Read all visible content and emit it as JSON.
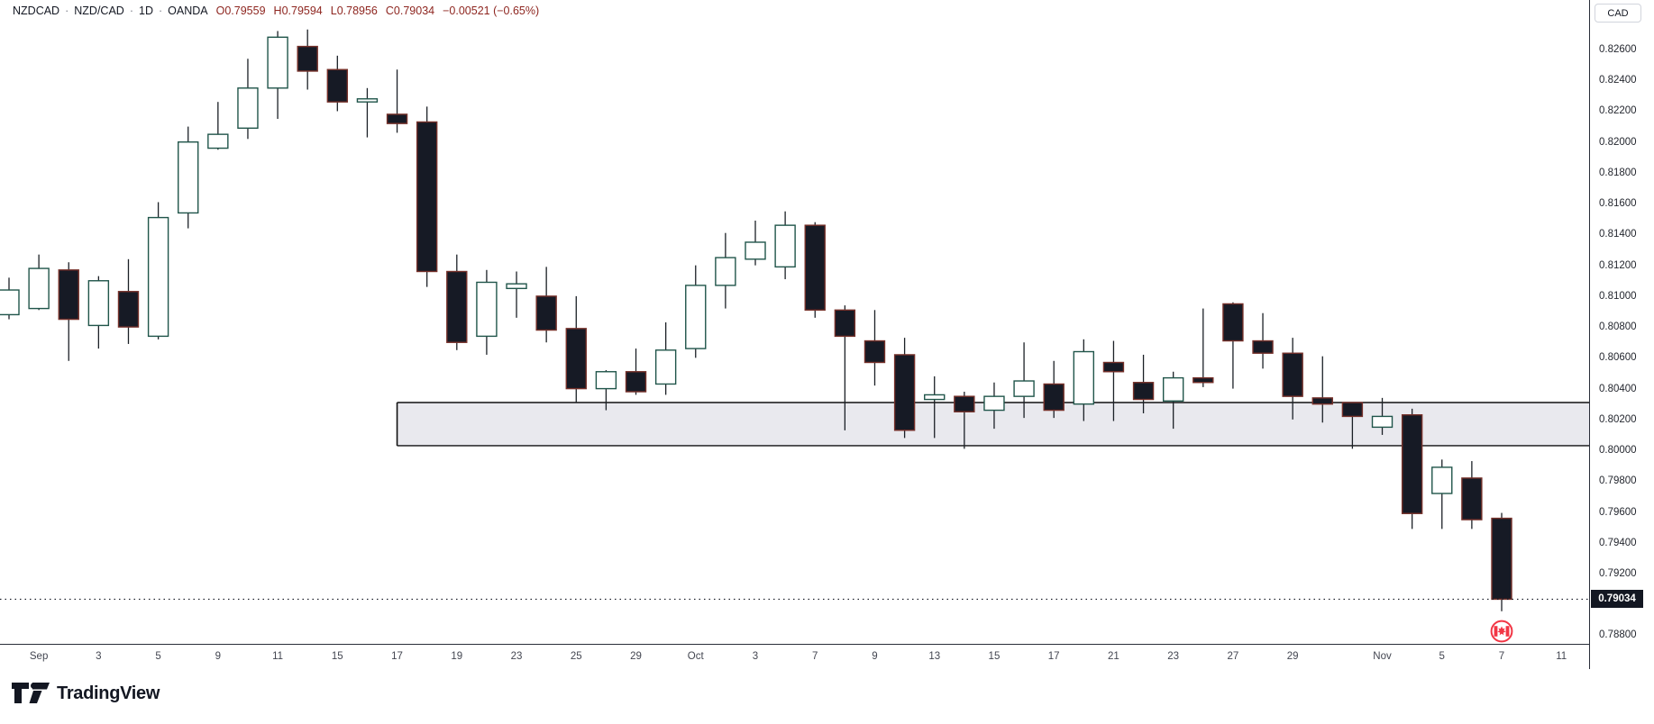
{
  "legend": {
    "symbol": "NZDCAD",
    "sep": "·",
    "pair": "NZD/CAD",
    "interval": "1D",
    "exchange": "OANDA",
    "ohlc": [
      {
        "k": "O",
        "v": "0.79559"
      },
      {
        "k": "H",
        "v": "0.79594"
      },
      {
        "k": "L",
        "v": "0.78956"
      },
      {
        "k": "C",
        "v": "0.79034"
      }
    ],
    "change": "−0.00521 (−0.65%)",
    "value_color": "#8e2620"
  },
  "price_axis": {
    "currency": "CAD",
    "last_price": "0.79034",
    "labels": [
      "0.82600",
      "0.82400",
      "0.82200",
      "0.82000",
      "0.81800",
      "0.81600",
      "0.81400",
      "0.81200",
      "0.81000",
      "0.80800",
      "0.80600",
      "0.80400",
      "0.80200",
      "0.80000",
      "0.79800",
      "0.79600",
      "0.79400",
      "0.79200",
      "0.78800"
    ]
  },
  "time_axis": {
    "ticks": [
      {
        "label": "Sep",
        "i": 1
      },
      {
        "label": "3",
        "i": 3
      },
      {
        "label": "5",
        "i": 5
      },
      {
        "label": "9",
        "i": 7
      },
      {
        "label": "11",
        "i": 9
      },
      {
        "label": "15",
        "i": 11
      },
      {
        "label": "17",
        "i": 13
      },
      {
        "label": "19",
        "i": 15
      },
      {
        "label": "23",
        "i": 17
      },
      {
        "label": "25",
        "i": 19
      },
      {
        "label": "29",
        "i": 21
      },
      {
        "label": "Oct",
        "i": 23
      },
      {
        "label": "3",
        "i": 25
      },
      {
        "label": "7",
        "i": 27
      },
      {
        "label": "9",
        "i": 29
      },
      {
        "label": "13",
        "i": 31
      },
      {
        "label": "15",
        "i": 33
      },
      {
        "label": "17",
        "i": 35
      },
      {
        "label": "21",
        "i": 37
      },
      {
        "label": "23",
        "i": 39
      },
      {
        "label": "27",
        "i": 41
      },
      {
        "label": "29",
        "i": 43
      },
      {
        "label": "Nov",
        "i": 46
      },
      {
        "label": "5",
        "i": 48
      },
      {
        "label": "7",
        "i": 50
      },
      {
        "label": "11",
        "i": 52
      }
    ]
  },
  "chart_data": {
    "type": "candlestick",
    "symbol": "NZDCAD",
    "timeframe": "1D",
    "price_axis_range": [
      0.7875,
      0.8273
    ],
    "grid": "off",
    "candles": [
      {
        "d": "Aug 29",
        "o": 0.8088,
        "h": 0.8112,
        "l": 0.8085,
        "c": 0.8104
      },
      {
        "d": "Sep 1",
        "o": 0.8092,
        "h": 0.8127,
        "l": 0.8091,
        "c": 0.8118
      },
      {
        "d": "Sep 2",
        "o": 0.8117,
        "h": 0.8122,
        "l": 0.8058,
        "c": 0.8085
      },
      {
        "d": "Sep 3",
        "o": 0.8081,
        "h": 0.8113,
        "l": 0.8066,
        "c": 0.811
      },
      {
        "d": "Sep 4",
        "o": 0.8103,
        "h": 0.8124,
        "l": 0.8069,
        "c": 0.808
      },
      {
        "d": "Sep 5",
        "o": 0.8074,
        "h": 0.8161,
        "l": 0.8072,
        "c": 0.8151
      },
      {
        "d": "Sep 8",
        "o": 0.8154,
        "h": 0.821,
        "l": 0.8144,
        "c": 0.82
      },
      {
        "d": "Sep 9",
        "o": 0.8196,
        "h": 0.8226,
        "l": 0.8195,
        "c": 0.8205
      },
      {
        "d": "Sep 10",
        "o": 0.8209,
        "h": 0.8254,
        "l": 0.8202,
        "c": 0.8235
      },
      {
        "d": "Sep 11",
        "o": 0.8235,
        "h": 0.8272,
        "l": 0.8215,
        "c": 0.8268
      },
      {
        "d": "Sep 12",
        "o": 0.8262,
        "h": 0.8273,
        "l": 0.8234,
        "c": 0.8246
      },
      {
        "d": "Sep 15",
        "o": 0.8247,
        "h": 0.8256,
        "l": 0.822,
        "c": 0.8226
      },
      {
        "d": "Sep 16",
        "o": 0.8226,
        "h": 0.8235,
        "l": 0.8203,
        "c": 0.8228
      },
      {
        "d": "Sep 17",
        "o": 0.8218,
        "h": 0.8247,
        "l": 0.8206,
        "c": 0.8212
      },
      {
        "d": "Sep 18",
        "o": 0.8213,
        "h": 0.8223,
        "l": 0.8106,
        "c": 0.8116
      },
      {
        "d": "Sep 19",
        "o": 0.8116,
        "h": 0.8127,
        "l": 0.8065,
        "c": 0.807
      },
      {
        "d": "Sep 22",
        "o": 0.8074,
        "h": 0.8117,
        "l": 0.8062,
        "c": 0.8109
      },
      {
        "d": "Sep 23",
        "o": 0.8105,
        "h": 0.8116,
        "l": 0.8086,
        "c": 0.8108
      },
      {
        "d": "Sep 24",
        "o": 0.81,
        "h": 0.8119,
        "l": 0.807,
        "c": 0.8078
      },
      {
        "d": "Sep 25",
        "o": 0.8079,
        "h": 0.81,
        "l": 0.8031,
        "c": 0.804
      },
      {
        "d": "Sep 26",
        "o": 0.804,
        "h": 0.8052,
        "l": 0.8026,
        "c": 0.8051
      },
      {
        "d": "Sep 29",
        "o": 0.8051,
        "h": 0.8066,
        "l": 0.8036,
        "c": 0.8038
      },
      {
        "d": "Sep 30",
        "o": 0.8043,
        "h": 0.8083,
        "l": 0.8036,
        "c": 0.8065
      },
      {
        "d": "Oct 1",
        "o": 0.8066,
        "h": 0.812,
        "l": 0.806,
        "c": 0.8107
      },
      {
        "d": "Oct 2",
        "o": 0.8107,
        "h": 0.8141,
        "l": 0.8092,
        "c": 0.8125
      },
      {
        "d": "Oct 3",
        "o": 0.8124,
        "h": 0.8149,
        "l": 0.812,
        "c": 0.8135
      },
      {
        "d": "Oct 6",
        "o": 0.8119,
        "h": 0.8155,
        "l": 0.8111,
        "c": 0.8146
      },
      {
        "d": "Oct 7",
        "o": 0.8146,
        "h": 0.8148,
        "l": 0.8086,
        "c": 0.8091
      },
      {
        "d": "Oct 8",
        "o": 0.8091,
        "h": 0.8094,
        "l": 0.8013,
        "c": 0.8074
      },
      {
        "d": "Oct 9",
        "o": 0.8071,
        "h": 0.8091,
        "l": 0.8042,
        "c": 0.8057
      },
      {
        "d": "Oct 10",
        "o": 0.8062,
        "h": 0.8073,
        "l": 0.8008,
        "c": 0.8013
      },
      {
        "d": "Oct 13",
        "o": 0.8033,
        "h": 0.8048,
        "l": 0.8008,
        "c": 0.8036
      },
      {
        "d": "Oct 14",
        "o": 0.8035,
        "h": 0.8038,
        "l": 0.8001,
        "c": 0.8025
      },
      {
        "d": "Oct 15",
        "o": 0.8026,
        "h": 0.8044,
        "l": 0.8014,
        "c": 0.8035
      },
      {
        "d": "Oct 16",
        "o": 0.8035,
        "h": 0.807,
        "l": 0.8021,
        "c": 0.8045
      },
      {
        "d": "Oct 17",
        "o": 0.8043,
        "h": 0.8058,
        "l": 0.8021,
        "c": 0.8026
      },
      {
        "d": "Oct 20",
        "o": 0.803,
        "h": 0.8072,
        "l": 0.8019,
        "c": 0.8064
      },
      {
        "d": "Oct 21",
        "o": 0.8057,
        "h": 0.8071,
        "l": 0.8019,
        "c": 0.8051
      },
      {
        "d": "Oct 22",
        "o": 0.8044,
        "h": 0.8062,
        "l": 0.8024,
        "c": 0.8033
      },
      {
        "d": "Oct 23",
        "o": 0.8032,
        "h": 0.8051,
        "l": 0.8014,
        "c": 0.8047
      },
      {
        "d": "Oct 24",
        "o": 0.8047,
        "h": 0.8092,
        "l": 0.8041,
        "c": 0.8044
      },
      {
        "d": "Oct 27",
        "o": 0.8095,
        "h": 0.8096,
        "l": 0.804,
        "c": 0.8071
      },
      {
        "d": "Oct 28",
        "o": 0.8071,
        "h": 0.8089,
        "l": 0.8053,
        "c": 0.8063
      },
      {
        "d": "Oct 29",
        "o": 0.8063,
        "h": 0.8073,
        "l": 0.802,
        "c": 0.8035
      },
      {
        "d": "Oct 30",
        "o": 0.8034,
        "h": 0.8061,
        "l": 0.8018,
        "c": 0.803
      },
      {
        "d": "Oct 31",
        "o": 0.8031,
        "h": 0.8031,
        "l": 0.8001,
        "c": 0.8022
      },
      {
        "d": "Nov 3",
        "o": 0.8015,
        "h": 0.8034,
        "l": 0.801,
        "c": 0.8022
      },
      {
        "d": "Nov 4",
        "o": 0.8023,
        "h": 0.8027,
        "l": 0.7949,
        "c": 0.7959
      },
      {
        "d": "Nov 5",
        "o": 0.7972,
        "h": 0.7994,
        "l": 0.7949,
        "c": 0.7989
      },
      {
        "d": "Nov 6",
        "o": 0.7982,
        "h": 0.7993,
        "l": 0.7949,
        "c": 0.7955
      },
      {
        "d": "Nov 7",
        "o": 0.79559,
        "h": 0.79594,
        "l": 0.78956,
        "c": 0.79034
      }
    ],
    "zone": {
      "shape": "rectangle",
      "price_top": 0.8031,
      "price_bottom": 0.8003,
      "start_date": "Sep 17",
      "extends_to_right_edge": true
    },
    "last_price_line": {
      "price": 0.79034,
      "style": "dotted"
    },
    "event_marker": {
      "date": "Nov 7",
      "icon": "canada-flag",
      "price_level": 0.7895
    }
  },
  "colors": {
    "up_fill": "#ffffff",
    "up_border": "#20554a",
    "down_fill": "#161a25",
    "down_border": "#76312a",
    "wick": "#1b2026",
    "zone_fill": "#e9e9ee",
    "zone_border": "#101010",
    "last_label_bg": "#131722",
    "event_red": "#f23645",
    "dotted_line": "#131722",
    "axis_text": "#434651"
  },
  "logo": {
    "text": "TradingView"
  }
}
